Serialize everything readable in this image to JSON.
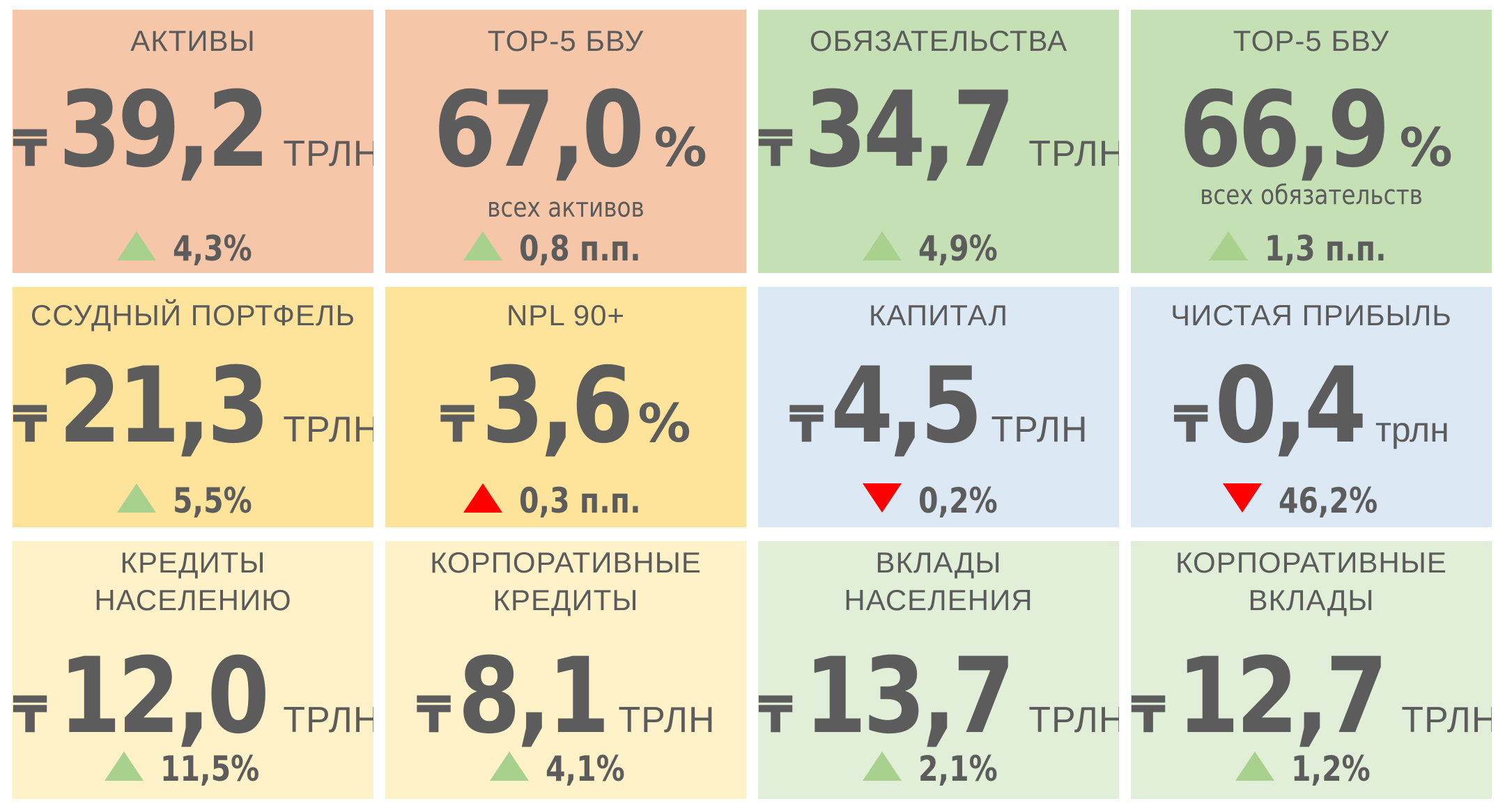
{
  "colors": {
    "salmon": "#f6c6a9",
    "green_strong": "#c5e0b4",
    "yellow_strong": "#fde49a",
    "blue_light": "#dde8f5",
    "yellow_light": "#fff1c8",
    "green_light": "#e1efd9",
    "text": "#5c5c5c",
    "up_green": "#a9d18e",
    "red": "#ff0000"
  },
  "cards": [
    {
      "title": "АКТИВЫ",
      "currency": "₸",
      "value": "39,2",
      "unit": "ТРЛН",
      "note": "",
      "change": "4,3%",
      "direction": "up",
      "change_color": "green",
      "bg": "#f6c6a9"
    },
    {
      "title": "TOP-5 БВУ",
      "currency": "",
      "value": "67,0",
      "unit": "%",
      "note": "всех активов",
      "change": "0,8 п.п.",
      "direction": "up",
      "change_color": "green",
      "bg": "#f6c6a9"
    },
    {
      "title": "ОБЯЗАТЕЛЬСТВА",
      "currency": "₸",
      "value": "34,7",
      "unit": "ТРЛН",
      "note": "",
      "change": "4,9%",
      "direction": "up",
      "change_color": "green",
      "bg": "#c5e0b4"
    },
    {
      "title": "TOP-5 БВУ",
      "currency": "",
      "value": "66,9",
      "unit": "%",
      "note": "всех обязательств",
      "change": "1,3 п.п.",
      "direction": "up",
      "change_color": "green",
      "bg": "#c5e0b4"
    },
    {
      "title": "ССУДНЫЙ ПОРТФЕЛЬ",
      "currency": "₸",
      "value": "21,3",
      "unit": "ТРЛН",
      "note": "",
      "change": "5,5%",
      "direction": "up",
      "change_color": "green",
      "bg": "#fde49a"
    },
    {
      "title": "NPL 90+",
      "currency": "₸",
      "value": "3,6",
      "unit": "%",
      "note": "",
      "change": "0,3 п.п.",
      "direction": "up",
      "change_color": "red",
      "bg": "#fde49a"
    },
    {
      "title": "КАПИТАЛ",
      "currency": "₸",
      "value": "4,5",
      "unit": "ТРЛН",
      "note": "",
      "change": "0,2%",
      "direction": "down",
      "change_color": "red",
      "bg": "#dde8f5"
    },
    {
      "title": "ЧИСТАЯ ПРИБЫЛЬ",
      "currency": "₸",
      "value": "0,4",
      "unit": "трлн",
      "note": "",
      "change": "46,2%",
      "direction": "down",
      "change_color": "red",
      "bg": "#dde8f5"
    },
    {
      "title": "КРЕДИТЫ\nНАСЕЛЕНИЮ",
      "currency": "₸",
      "value": "12,0",
      "unit": "ТРЛН",
      "note": "",
      "change": "11,5%",
      "direction": "up",
      "change_color": "green",
      "bg": "#fff1c8"
    },
    {
      "title": "КОРПОРАТИВНЫЕ\nКРЕДИТЫ",
      "currency": "₸",
      "value": "8,1",
      "unit": "ТРЛН",
      "note": "",
      "change": "4,1%",
      "direction": "up",
      "change_color": "green",
      "bg": "#fff1c8"
    },
    {
      "title": "ВКЛАДЫ\nНАСЕЛЕНИЯ",
      "currency": "₸",
      "value": "13,7",
      "unit": "ТРЛН",
      "note": "",
      "change": "2,1%",
      "direction": "up",
      "change_color": "green",
      "bg": "#e1efd9"
    },
    {
      "title": "КОРПОРАТИВНЫЕ\nВКЛАДЫ",
      "currency": "₸",
      "value": "12,7",
      "unit": "ТРЛН",
      "note": "",
      "change": "1,2%",
      "direction": "up",
      "change_color": "green",
      "bg": "#e1efd9"
    }
  ]
}
